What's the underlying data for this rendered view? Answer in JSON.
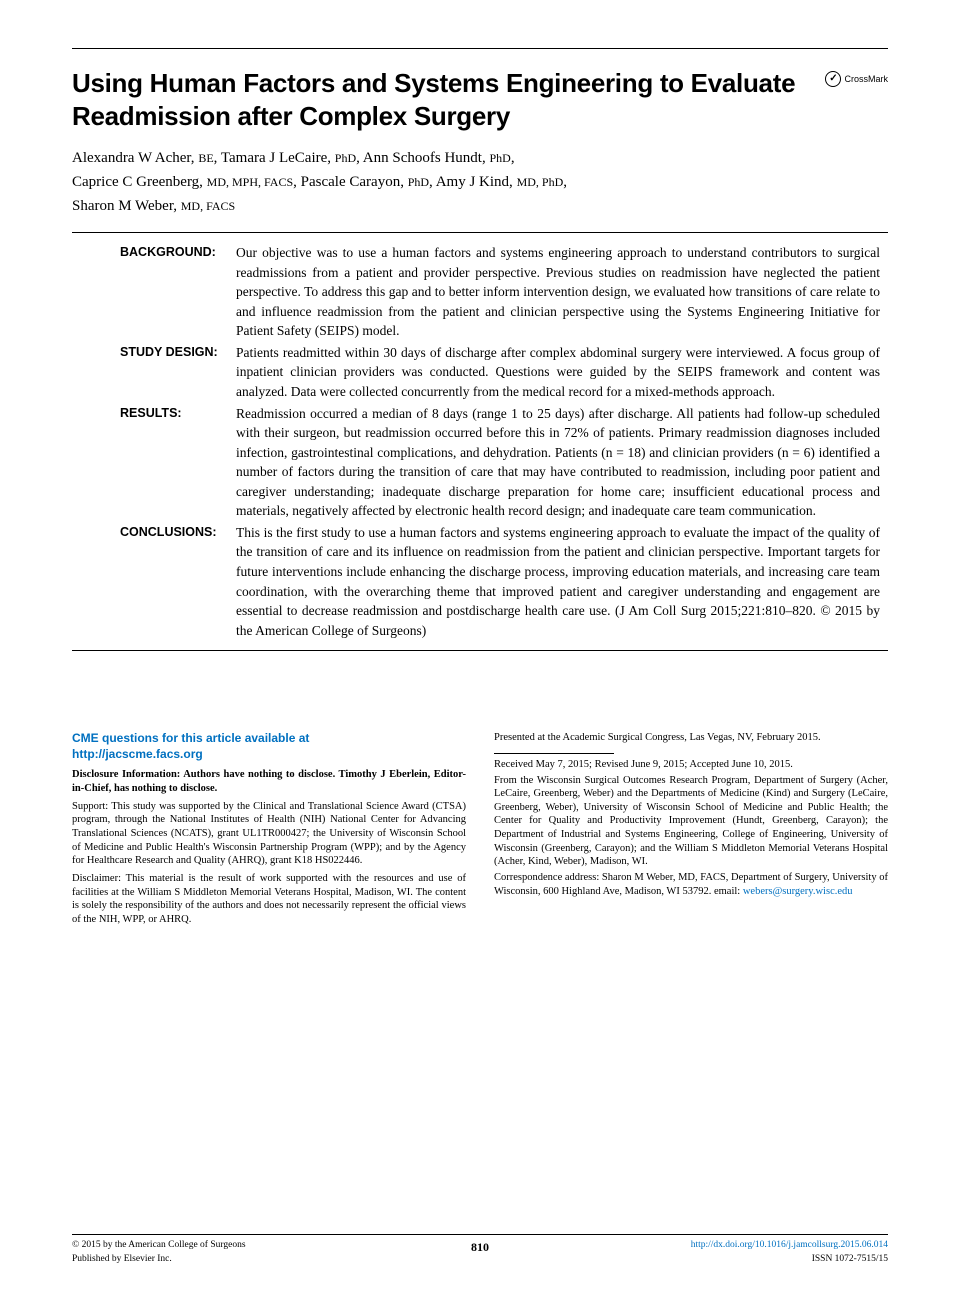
{
  "title": "Using Human Factors and Systems Engineering to Evaluate Readmission after Complex Surgery",
  "crossmark": "CrossMark",
  "authors_html": "Alexandra W Acher, <span class='deg'>BE</span>, Tamara J LeCaire, <span class='deg'>PhD</span>, Ann Schoofs Hundt, <span class='deg'>PhD</span>,<br>Caprice C Greenberg, <span class='deg'>MD, MPH, FACS</span>, Pascale Carayon, <span class='deg'>PhD</span>, Amy J Kind, <span class='deg'>MD, PhD</span>,<br>Sharon M Weber, <span class='deg'>MD, FACS</span>",
  "abstract": {
    "background": {
      "label": "BACKGROUND:",
      "text": "Our objective was to use a human factors and systems engineering approach to understand contributors to surgical readmissions from a patient and provider perspective. Previous studies on readmission have neglected the patient perspective. To address this gap and to better inform intervention design, we evaluated how transitions of care relate to and influence readmission from the patient and clinician perspective using the Systems Engineering Initiative for Patient Safety (SEIPS) model."
    },
    "design": {
      "label": "STUDY DESIGN:",
      "text": "Patients readmitted within 30 days of discharge after complex abdominal surgery were interviewed. A focus group of inpatient clinician providers was conducted. Questions were guided by the SEIPS framework and content was analyzed. Data were collected concurrently from the medical record for a mixed-methods approach."
    },
    "results": {
      "label": "RESULTS:",
      "text": "Readmission occurred a median of 8 days (range 1 to 25 days) after discharge. All patients had follow-up scheduled with their surgeon, but readmission occurred before this in 72% of patients. Primary readmission diagnoses included infection, gastrointestinal complications, and dehydration. Patients (n = 18) and clinician providers (n = 6) identified a number of factors during the transition of care that may have contributed to readmission, including poor patient and caregiver understanding; inadequate discharge preparation for home care; insufficient educational process and materials, negatively affected by electronic health record design; and inadequate care team communication."
    },
    "conclusions": {
      "label": "CONCLUSIONS:",
      "text": "This is the first study to use a human factors and systems engineering approach to evaluate the impact of the quality of the transition of care and its influence on readmission from the patient and clinician perspective. Important targets for future interventions include enhancing the discharge process, improving education materials, and increasing care team coordination, with the overarching theme that improved patient and caregiver understanding and engagement are essential to decrease readmission and postdischarge health care use. (J Am Coll Surg 2015;221:810–820. © 2015 by the American College of Surgeons)"
    }
  },
  "cme": {
    "line1": "CME questions for this article available at",
    "link": "http://jacscme.facs.org"
  },
  "disclosure": "Disclosure Information: Authors have nothing to disclose. Timothy J Eberlein, Editor-in-Chief, has nothing to disclose.",
  "support": "Support: This study was supported by the Clinical and Translational Science Award (CTSA) program, through the National Institutes of Health (NIH) National Center for Advancing Translational Sciences (NCATS), grant UL1TR000427; the University of Wisconsin School of Medicine and Public Health's Wisconsin Partnership Program (WPP); and by the Agency for Healthcare Research and Quality (AHRQ), grant K18 HS022446.",
  "disclaimer": "Disclaimer: This material is the result of work supported with the resources and use of facilities at the William S Middleton Memorial Veterans Hospital, Madison, WI. The content is solely the responsibility of the authors and does not necessarily represent the official views of the NIH, WPP, or AHRQ.",
  "presented": "Presented at the Academic Surgical Congress, Las Vegas, NV, February 2015.",
  "received": "Received May 7, 2015; Revised June 9, 2015; Accepted June 10, 2015.",
  "affiliations": "From the Wisconsin Surgical Outcomes Research Program, Department of Surgery (Acher, LeCaire, Greenberg, Weber) and the Departments of Medicine (Kind) and Surgery (LeCaire, Greenberg, Weber), University of Wisconsin School of Medicine and Public Health; the Center for Quality and Productivity Improvement (Hundt, Greenberg, Carayon); the Department of Industrial and Systems Engineering, College of Engineering, University of Wisconsin (Greenberg, Carayon); and the William S Middleton Memorial Veterans Hospital (Acher, Kind, Weber), Madison, WI.",
  "correspondence": "Correspondence address: Sharon M Weber, MD, FACS, Department of Surgery, University of Wisconsin, 600 Highland Ave, Madison, WI 53792. email: ",
  "email": "webers@surgery.wisc.edu",
  "footer": {
    "copyright": "© 2015 by the American College of Surgeons",
    "publisher": "Published by Elsevier Inc.",
    "page": "810",
    "doi": "http://dx.doi.org/10.1016/j.jamcollsurg.2015.06.014",
    "issn": "ISSN 1072-7515/15"
  },
  "colors": {
    "link": "#0070c0",
    "text": "#000000",
    "bg": "#ffffff"
  },
  "fonts": {
    "title_family": "Arial",
    "title_size_pt": 20,
    "title_weight": 700,
    "body_family": "Georgia",
    "body_size_pt": 10,
    "abs_label_family": "Arial",
    "abs_label_weight": 700,
    "footer_size_pt": 8
  }
}
